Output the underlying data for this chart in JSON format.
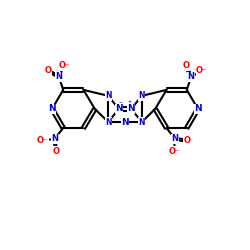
{
  "bg": "#ffffff",
  "bc": "#000000",
  "nc": "#0000cd",
  "oc": "#ff0000",
  "lw": 1.5,
  "dbo": 0.07,
  "fs": 6.5,
  "figsize": [
    2.5,
    2.5
  ],
  "dpi": 100,
  "xlim": [
    0,
    10
  ],
  "ylim": [
    1.5,
    8.5
  ]
}
